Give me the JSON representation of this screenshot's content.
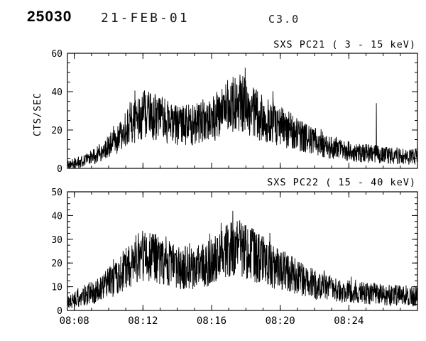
{
  "header": {
    "flare_number": "25030",
    "date": "21-FEB-01",
    "goes_class": "C3.0"
  },
  "x_axis": {
    "start_min": 487.6,
    "end_min": 508.0,
    "minor_step_min": 1,
    "major_ticks": [
      {
        "min": 488,
        "label": "08:08"
      },
      {
        "min": 492,
        "label": "08:12"
      },
      {
        "min": 496,
        "label": "08:16"
      },
      {
        "min": 500,
        "label": "08:20"
      },
      {
        "min": 504,
        "label": "08:24"
      }
    ]
  },
  "chart_data": [
    {
      "type": "line",
      "title": "SXS PC21 (  3 - 15 keV)",
      "ylabel": "CTS/SEC",
      "ylim": [
        0,
        60
      ],
      "yticks": [
        0,
        20,
        40,
        60
      ],
      "y_minor_step": 5,
      "line_color": "#000000",
      "envelope": [
        [
          487.7,
          2
        ],
        [
          488.5,
          4
        ],
        [
          489.5,
          8
        ],
        [
          490.5,
          15
        ],
        [
          491.5,
          25
        ],
        [
          492.2,
          29
        ],
        [
          493.0,
          26
        ],
        [
          494.0,
          22
        ],
        [
          495.0,
          23
        ],
        [
          496.0,
          26
        ],
        [
          496.8,
          30
        ],
        [
          497.6,
          35
        ],
        [
          498.3,
          30
        ],
        [
          499.0,
          26
        ],
        [
          500.0,
          22
        ],
        [
          501.0,
          18
        ],
        [
          502.0,
          14
        ],
        [
          503.0,
          11
        ],
        [
          504.0,
          9
        ],
        [
          505.0,
          8
        ],
        [
          506.0,
          7
        ],
        [
          508.0,
          6
        ]
      ],
      "noise_frac": 0.4,
      "base_noise": 1.8,
      "spike_prob": 0.05,
      "spike_scale": 0.35,
      "impulses": [
        {
          "min": 505.6,
          "value": 34
        }
      ],
      "seed": 21
    },
    {
      "type": "line",
      "title": "SXS PC22 ( 15 - 40 keV)",
      "ylabel": "",
      "ylim": [
        0,
        50
      ],
      "yticks": [
        0,
        10,
        20,
        30,
        40,
        50
      ],
      "y_minor_step": 2.5,
      "line_color": "#000000",
      "envelope": [
        [
          487.7,
          4
        ],
        [
          488.5,
          6
        ],
        [
          489.5,
          9
        ],
        [
          490.5,
          14
        ],
        [
          491.5,
          21
        ],
        [
          492.2,
          24
        ],
        [
          493.0,
          21
        ],
        [
          494.0,
          18
        ],
        [
          495.0,
          18
        ],
        [
          496.0,
          20
        ],
        [
          496.8,
          24
        ],
        [
          497.6,
          27
        ],
        [
          498.3,
          24
        ],
        [
          499.0,
          21
        ],
        [
          500.0,
          17
        ],
        [
          501.0,
          14
        ],
        [
          502.0,
          11
        ],
        [
          503.0,
          9
        ],
        [
          504.0,
          8
        ],
        [
          505.0,
          7
        ],
        [
          506.0,
          6.5
        ],
        [
          508.0,
          6
        ]
      ],
      "noise_frac": 0.4,
      "base_noise": 2.0,
      "spike_prob": 0.05,
      "spike_scale": 0.28,
      "impulses": [],
      "seed": 22
    }
  ]
}
